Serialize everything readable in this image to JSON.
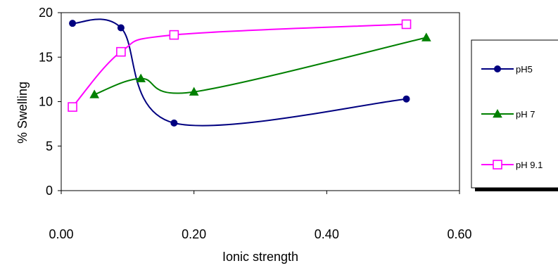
{
  "chart_data": {
    "type": "line",
    "title": "",
    "xlabel": "Ionic strength",
    "ylabel": "% Swelling",
    "xlim": [
      0,
      0.6
    ],
    "ylim": [
      0,
      20
    ],
    "x_ticks": [
      "0.00",
      "0.20",
      "0.40",
      "0.60"
    ],
    "y_ticks": [
      "0",
      "5",
      "10",
      "15",
      "20"
    ],
    "grid": false,
    "legend_position": "right",
    "series": [
      {
        "name": "pH5",
        "color": "#000080",
        "marker": "circle",
        "points": [
          {
            "x": 0.017,
            "y": 18.8
          },
          {
            "x": 0.09,
            "y": 18.3
          },
          {
            "x": 0.17,
            "y": 7.6
          },
          {
            "x": 0.52,
            "y": 10.3
          }
        ]
      },
      {
        "name": "pH 7",
        "color": "#008000",
        "marker": "triangle",
        "points": [
          {
            "x": 0.05,
            "y": 10.8
          },
          {
            "x": 0.12,
            "y": 12.6
          },
          {
            "x": 0.2,
            "y": 11.1
          },
          {
            "x": 0.55,
            "y": 17.2
          }
        ]
      },
      {
        "name": "pH 9.1",
        "color": "#ff00ff",
        "marker": "square",
        "points": [
          {
            "x": 0.017,
            "y": 9.4
          },
          {
            "x": 0.09,
            "y": 15.6
          },
          {
            "x": 0.17,
            "y": 17.5
          },
          {
            "x": 0.52,
            "y": 18.7
          }
        ]
      }
    ]
  }
}
